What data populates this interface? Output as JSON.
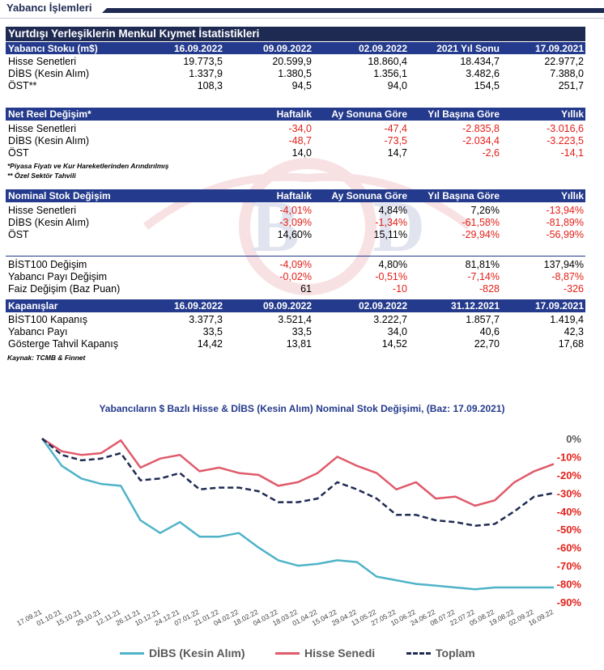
{
  "header": {
    "title": "Yabancı İşlemleri"
  },
  "section_title": "Yurtdışı Yerleşiklerin Menkul Kıymet İstatistikleri",
  "stock_table": {
    "headers": [
      "Yabancı Stoku (m$)",
      "16.09.2022",
      "09.09.2022",
      "02.09.2022",
      "2021 Yıl Sonu",
      "17.09.2021"
    ],
    "rows": [
      [
        "Hisse Senetleri",
        "19.773,5",
        "20.599,9",
        "18.860,4",
        "18.434,7",
        "22.977,2"
      ],
      [
        "DİBS (Kesin Alım)",
        "1.337,9",
        "1.380,5",
        "1.356,1",
        "3.482,6",
        "7.388,0"
      ],
      [
        "ÖST**",
        "108,3",
        "94,5",
        "94,0",
        "154,5",
        "251,7"
      ]
    ]
  },
  "net_table": {
    "headers": [
      "Net Reel Değişim*",
      "Haftalık",
      "Ay Sonuna Göre",
      "Yıl Başına Göre",
      "Yıllık"
    ],
    "rows": [
      [
        "Hisse Senetleri",
        "-34,0",
        "-47,4",
        "-2.835,8",
        "-3.016,6"
      ],
      [
        "DİBS (Kesin Alım)",
        "-48,7",
        "-73,5",
        "-2.034,4",
        "-3.223,5"
      ],
      [
        "ÖST",
        "14,0",
        "14,7",
        "-2,6",
        "-14,1"
      ]
    ]
  },
  "notes": [
    "*Piyasa Fiyatı ve Kur Hareketlerinden Arındırılmış",
    "** Özel Sektör Tahvili"
  ],
  "nominal_table": {
    "headers": [
      "Nominal Stok Değişim",
      "Haftalık",
      "Ay Sonuna Göre",
      "Yıl Başına Göre",
      "Yıllık"
    ],
    "rows": [
      [
        "Hisse Senetleri",
        "-4,01%",
        "4,84%",
        "7,26%",
        "-13,94%"
      ],
      [
        "DİBS (Kesin Alım)",
        "-3,09%",
        "-1,34%",
        "-61,58%",
        "-81,89%"
      ],
      [
        "ÖST",
        "14,60%",
        "15,11%",
        "-29,94%",
        "-56,99%"
      ]
    ]
  },
  "market_table": {
    "rows": [
      [
        "BİST100 Değişim",
        "-4,09%",
        "4,80%",
        "81,81%",
        "137,94%"
      ],
      [
        "Yabancı Payı Değişim",
        "-0,02%",
        "-0,51%",
        "-7,14%",
        "-8,87%"
      ],
      [
        "Faiz Değişim (Baz Puan)",
        "61",
        "-10",
        "-828",
        "-326"
      ]
    ]
  },
  "closing_table": {
    "headers": [
      "Kapanışlar",
      "16.09.2022",
      "09.09.2022",
      "02.09.2022",
      "31.12.2021",
      "17.09.2021"
    ],
    "rows": [
      [
        "BİST100 Kapanış",
        "3.377,3",
        "3.521,4",
        "3.222,7",
        "1.857,7",
        "1.419,4"
      ],
      [
        "Yabancı Payı",
        "33,5",
        "33,5",
        "34,0",
        "40,6",
        "42,3"
      ],
      [
        "Gösterge Tahvil Kapanış",
        "14,42",
        "13,81",
        "14,52",
        "22,70",
        "17,68"
      ]
    ]
  },
  "source": "Kaynak: TCMB & Finnet",
  "colors": {
    "navy": "#1f2a52",
    "blue": "#243a8c",
    "negative": "#e32019",
    "dibs": "#4fb3c8",
    "hisse": "#e05a6a",
    "toplam": "#1f2a52"
  },
  "chart_data": {
    "type": "line",
    "title": "Yabancıların $ Bazlı Hisse & DİBS (Kesin Alım) Nominal Stok Değişimi, (Baz: 17.09.2021)",
    "x": [
      "17.09.21",
      "01.10.21",
      "15.10.21",
      "29.10.21",
      "12.11.21",
      "26.11.21",
      "10.12.21",
      "24.12.21",
      "07.01.22",
      "21.01.22",
      "04.02.22",
      "18.02.22",
      "04.03.22",
      "18.03.22",
      "01.04.22",
      "15.04.22",
      "29.04.22",
      "13.05.22",
      "27.05.22",
      "10.06.22",
      "24.06.22",
      "08.07.22",
      "22.07.22",
      "05.08.22",
      "19.08.22",
      "02.09.22",
      "16.09.22"
    ],
    "ylim": [
      -90,
      0
    ],
    "yticks": [
      "0%",
      "-10%",
      "-20%",
      "-30%",
      "-40%",
      "-50%",
      "-60%",
      "-70%",
      "-80%",
      "-90%"
    ],
    "y_axis_position": "right",
    "legend_position": "bottom",
    "series": [
      {
        "name": "DİBS (Kesin Alım)",
        "color": "#4fb3c8",
        "dash": "solid",
        "values": [
          0,
          -15,
          -22,
          -25,
          -26,
          -45,
          -52,
          -46,
          -54,
          -54,
          -52,
          -60,
          -67,
          -70,
          -69,
          -67,
          -68,
          -76,
          -78,
          -80,
          -81,
          -82,
          -83,
          -82,
          -82,
          -82,
          -82
        ]
      },
      {
        "name": "Hisse Senedi",
        "color": "#e05a6a",
        "dash": "solid",
        "values": [
          0,
          -7,
          -9,
          -8,
          -1,
          -16,
          -11,
          -9,
          -18,
          -16,
          -19,
          -20,
          -26,
          -24,
          -19,
          -10,
          -15,
          -19,
          -28,
          -24,
          -33,
          -32,
          -37,
          -34,
          -24,
          -18,
          -14
        ]
      },
      {
        "name": "Toplam",
        "color": "#1f2a52",
        "dash": "dashed",
        "values": [
          0,
          -9,
          -12,
          -11,
          -8,
          -23,
          -22,
          -19,
          -28,
          -27,
          -27,
          -29,
          -35,
          -35,
          -33,
          -24,
          -28,
          -33,
          -42,
          -42,
          -45,
          -46,
          -48,
          -47,
          -40,
          -32,
          -30
        ]
      }
    ]
  }
}
